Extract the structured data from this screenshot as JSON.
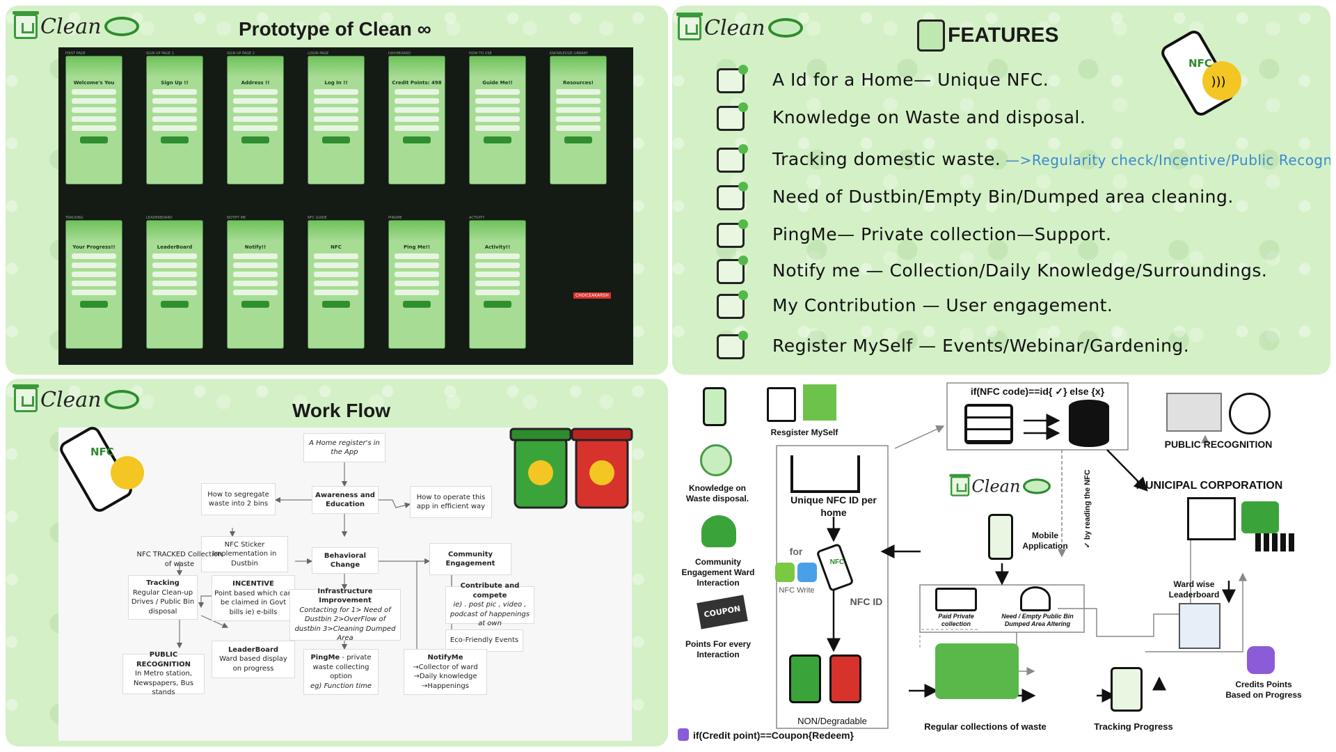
{
  "colors": {
    "panel_bg": "#d4f0c6",
    "accent_green": "#2e8b2e",
    "bin_green": "#3aa43a",
    "bin_red": "#d8322d",
    "nfc_yellow": "#f4c623",
    "link_blue": "#3a8ad0"
  },
  "logo": {
    "word": "Clean",
    "symbol": "∞"
  },
  "prototype": {
    "title": "Prototype of Clean ∞",
    "row1": [
      {
        "label": "FIRST PAGE",
        "title": "Welcome's You"
      },
      {
        "label": "SIGN UP PAGE 1",
        "title": "Sign Up !!"
      },
      {
        "label": "SIGN UP PAGE 2",
        "title": "Address !!"
      },
      {
        "label": "LOGIN PAGE",
        "title": "Log In !!"
      },
      {
        "label": "DASHBOARD",
        "title": "Credit Points: 498"
      },
      {
        "label": "HOW TO USE",
        "title": "Guide Me!!"
      },
      {
        "label": "KNOWLEDGE LIBRARY",
        "title": "Resources!"
      }
    ],
    "row2": [
      {
        "label": "TRACKING",
        "title": "Your Progress!!"
      },
      {
        "label": "LEADERBOARD",
        "title": "LeaderBoard"
      },
      {
        "label": "NOTIFY ME",
        "title": "Notify!!"
      },
      {
        "label": "NFC GUIDE",
        "title": "NFC"
      },
      {
        "label": "PINGME",
        "title": "Ping Me!!"
      },
      {
        "label": "ACTIVITY",
        "title": "Activity!!"
      }
    ],
    "badge": "CHOICEAKARSH"
  },
  "features": {
    "title": "FEATURES",
    "nfc_label": "NFC",
    "items": [
      {
        "icon": "id-card-icon",
        "text": "A Id for a Home— Unique NFC.",
        "sub": ""
      },
      {
        "icon": "recycle-bulb-icon",
        "text": "Knowledge on Waste and disposal.",
        "sub": ""
      },
      {
        "icon": "phone-search-icon",
        "text": "Tracking domestic waste.",
        "sub": "—>Regularity check/Incentive/Public Recognition"
      },
      {
        "icon": "location-bin-icon",
        "text": "Need of Dustbin/Empty Bin/Dumped area cleaning.",
        "sub": ""
      },
      {
        "icon": "truck-location-icon",
        "text": "PingMe— Private collection—Support.",
        "sub": ""
      },
      {
        "icon": "phone-bell-icon",
        "text": "Notify me — Collection/Daily Knowledge/Surroundings.",
        "sub": ""
      },
      {
        "icon": "heart-hands-icon",
        "text": "My Contribution — User engagement.",
        "sub": ""
      },
      {
        "icon": "register-form-icon",
        "text": "Register MySelf — Events/Webinar/Gardening.",
        "sub": ""
      }
    ]
  },
  "workflow": {
    "title": "Work Flow",
    "nfc_label": "NFC",
    "nodes": {
      "home": "A Home register's in the App",
      "aware": "Awareness and Education",
      "segregate": "How to segregate waste into 2 bins",
      "operate": "How to operate this app in efficient way",
      "sticker": "NFC Sticker Implementation in Dustbin",
      "behavior": "Behavioral Change",
      "community": "Community Engagement",
      "nfc_tracked": "NFC TRACKED Collection of waste",
      "incentive_title": "INCENTIVE",
      "incentive_body": "Point based which can be claimed in Govt bills ie) e-bills",
      "infra_title": "Infrastructure Improvement",
      "infra_body": "Contacting for 1> Need of Dustbin 2>OverFlow of dustbin 3>Cleaning Dumped Area",
      "contribute_title": "Contribute and compete",
      "contribute_body": "ie) . post pic , video , podcast of happenings at own",
      "tracking_title": "Tracking",
      "tracking_body": "Regular Clean-up Drives / Public Bin disposal",
      "eco": "Eco-Friendly Events",
      "public_title": "PUBLIC RECOGNITION",
      "public_body": "In Metro station, Newspapers, Bus stands",
      "leader_title": "LeaderBoard",
      "leader_body": "Ward based display on progress",
      "pingme_title": "PingMe",
      "pingme_body": "- private waste collecting option",
      "pingme_eg": "eg) Function time",
      "notify_title": "NotifyMe",
      "notify_body": "→Collector of ward →Daily knowledge →Happenings"
    }
  },
  "architecture": {
    "condition": "if(NFC code)==id{ ✓} else {x}",
    "register": "Resgister MySelf",
    "knowledge": "Knowledge on Waste disposal.",
    "community": "Community Engagement Ward Interaction",
    "points": "Points For every Interaction",
    "coupon": "COUPON",
    "credit_cond": "if(Credit point)==Coupon{Redeem}",
    "unique": "Unique NFC ID per home",
    "for": "for",
    "nfc_write": "NFC Write",
    "nfc_id": "NFC ID",
    "nfc_label": "NFC",
    "non_deg": "NON/Degradable",
    "mobile": "Mobile Application",
    "reading": "✓ by reading the NFC",
    "paid": "Paid Private collection",
    "need": "Need / Empty Public Bin Dumped Area Altering",
    "public": "PUBLIC RECOGNITION",
    "municipal": "MUNICIPAL CORPORATION",
    "ward": "Ward wise Leaderboard",
    "credits": "Credits Points Based on Progress",
    "regular": "Regular collections of waste",
    "tracking": "Tracking Progress"
  }
}
